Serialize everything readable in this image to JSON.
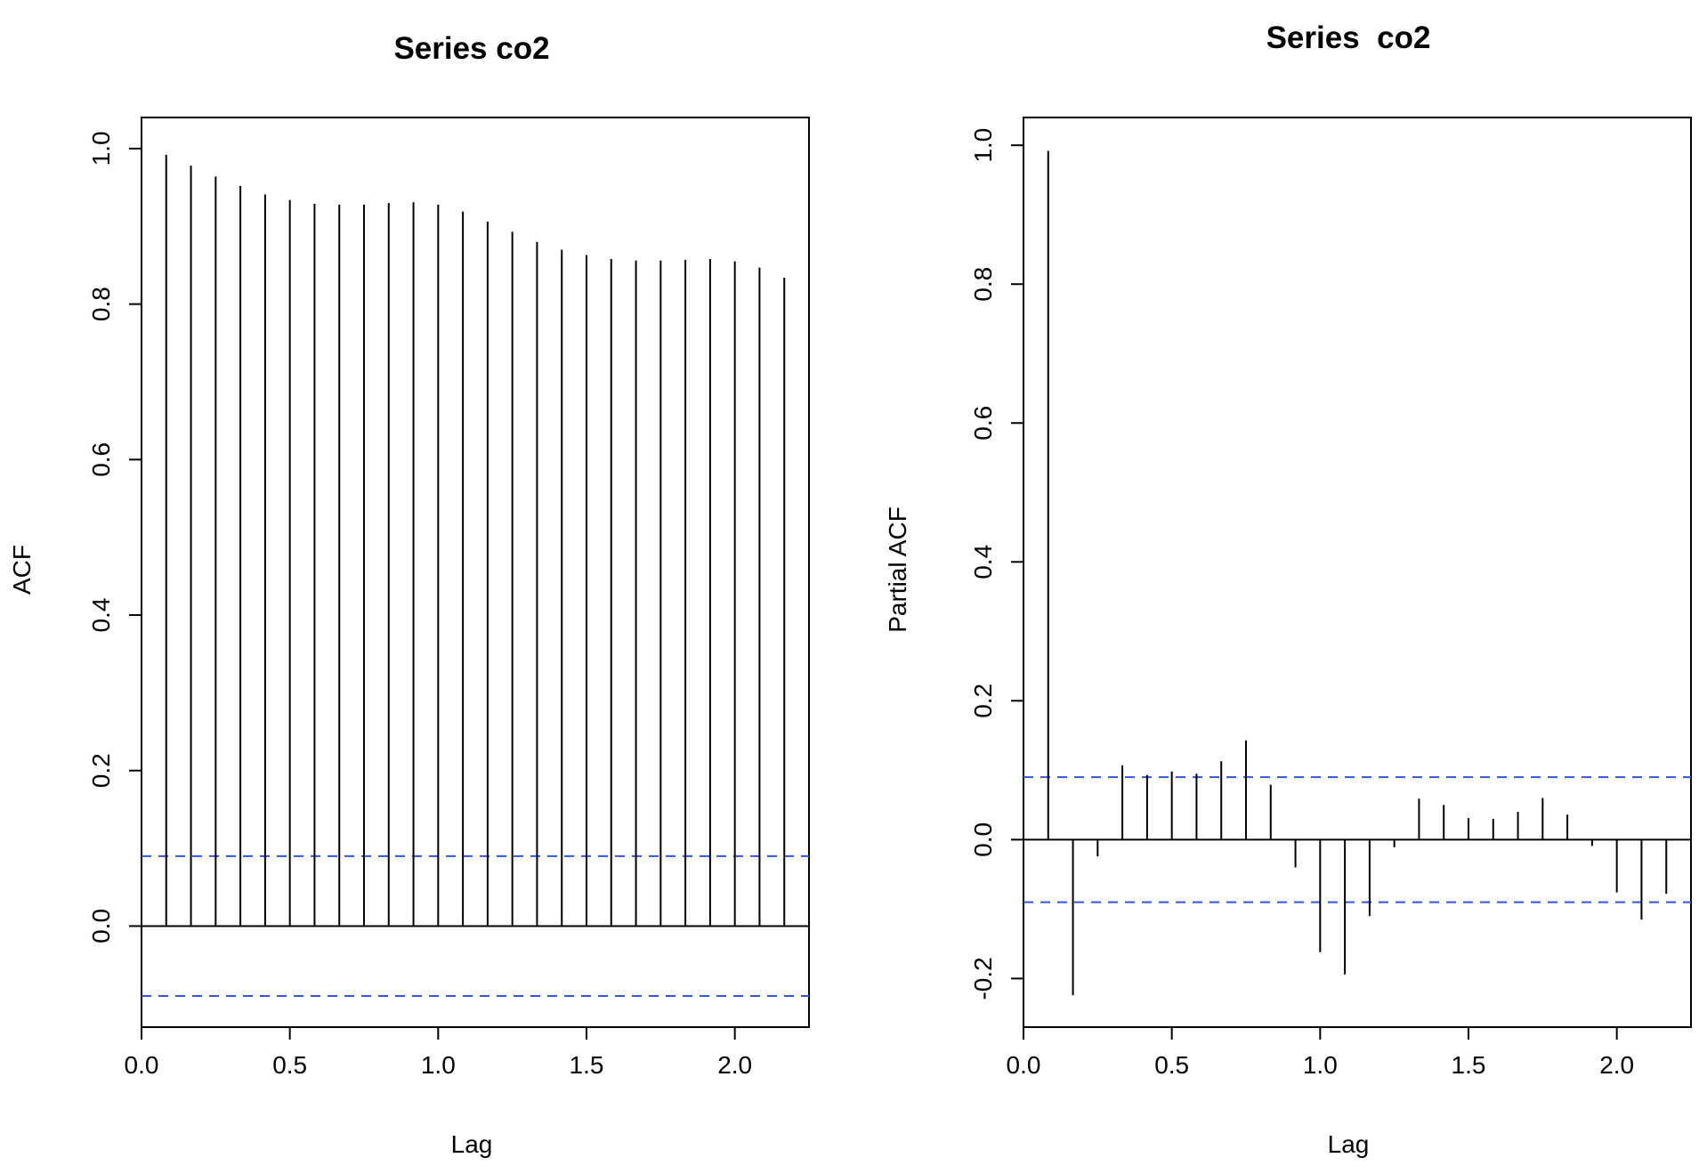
{
  "chart_data": [
    {
      "type": "bar",
      "title": "Series co2",
      "xlabel": "Lag",
      "ylabel": "ACF",
      "xlim": [
        0,
        2.25
      ],
      "ylim": [
        -0.13,
        1.04
      ],
      "x_ticks": [
        "0.0",
        "0.5",
        "1.0",
        "1.5",
        "2.0"
      ],
      "y_ticks": [
        "0.0",
        "0.2",
        "0.4",
        "0.6",
        "0.8",
        "1.0"
      ],
      "conf_limit": 0.09,
      "zero_line": true,
      "colors": {
        "bars": "#000000",
        "conf_lines": "#3355dd"
      },
      "x": [
        0.0833,
        0.1667,
        0.25,
        0.3333,
        0.4167,
        0.5,
        0.5833,
        0.6667,
        0.75,
        0.8333,
        0.9167,
        1.0,
        1.0833,
        1.1667,
        1.25,
        1.3333,
        1.4167,
        1.5,
        1.5833,
        1.6667,
        1.75,
        1.8333,
        1.9167,
        2.0,
        2.0833,
        2.1667
      ],
      "values": [
        0.992,
        0.978,
        0.964,
        0.952,
        0.941,
        0.934,
        0.929,
        0.928,
        0.928,
        0.93,
        0.931,
        0.928,
        0.919,
        0.906,
        0.893,
        0.88,
        0.87,
        0.863,
        0.858,
        0.856,
        0.856,
        0.857,
        0.858,
        0.855,
        0.847,
        0.834
      ]
    },
    {
      "type": "bar",
      "title": "Series  co2",
      "xlabel": "Lag",
      "ylabel": "Partial ACF",
      "xlim": [
        0,
        2.25
      ],
      "ylim": [
        -0.27,
        1.04
      ],
      "x_ticks": [
        "0.0",
        "0.5",
        "1.0",
        "1.5",
        "2.0"
      ],
      "y_ticks": [
        "-0.2",
        "0.0",
        "0.2",
        "0.4",
        "0.6",
        "0.8",
        "1.0"
      ],
      "conf_limit": 0.09,
      "zero_line": true,
      "colors": {
        "bars": "#000000",
        "conf_lines": "#3355dd"
      },
      "x": [
        0.0833,
        0.1667,
        0.25,
        0.3333,
        0.4167,
        0.5,
        0.5833,
        0.6667,
        0.75,
        0.8333,
        0.9167,
        1.0,
        1.0833,
        1.1667,
        1.25,
        1.3333,
        1.4167,
        1.5,
        1.5833,
        1.6667,
        1.75,
        1.8333,
        1.9167,
        2.0,
        2.0833,
        2.1667
      ],
      "values": [
        0.992,
        -0.224,
        -0.024,
        0.107,
        0.093,
        0.098,
        0.095,
        0.113,
        0.143,
        0.079,
        -0.04,
        -0.162,
        -0.194,
        -0.11,
        -0.011,
        0.059,
        0.05,
        0.031,
        0.03,
        0.04,
        0.06,
        0.036,
        -0.009,
        -0.076,
        -0.115,
        -0.078
      ]
    }
  ]
}
